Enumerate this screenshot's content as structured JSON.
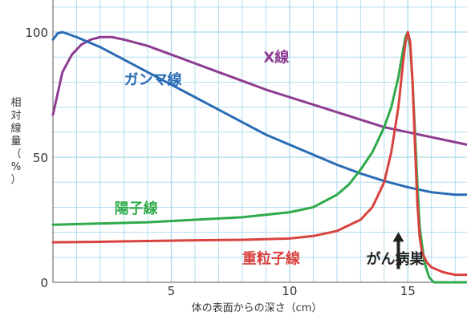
{
  "chart_data": {
    "type": "line",
    "xlabel": "体の表面からの深さ（cm）",
    "ylabel": "相対線量（%）",
    "xlim": [
      0,
      17.5
    ],
    "ylim": [
      0,
      100
    ],
    "x_ticks": [
      5,
      10,
      15
    ],
    "y_ticks": [
      0,
      50,
      100
    ],
    "grid": true,
    "colors": {
      "background": "#ffffff",
      "grid": "#a9d8ec",
      "axis": "#555555",
      "text": "#333333"
    },
    "series": [
      {
        "name": "X線",
        "color": "#8e3c92",
        "x": [
          0,
          0.4,
          0.8,
          1.2,
          1.6,
          2.0,
          2.5,
          3,
          4,
          5,
          6,
          7,
          8,
          9,
          10,
          11,
          12,
          13,
          14,
          15,
          16,
          17,
          17.5
        ],
        "y": [
          67,
          84,
          91,
          95,
          97,
          98,
          98,
          97,
          94.5,
          91,
          87.5,
          84,
          80.5,
          77,
          74,
          71,
          68,
          65,
          62,
          60,
          58,
          56,
          55
        ]
      },
      {
        "name": "ガンマ線",
        "color": "#2a6bb5",
        "x": [
          0,
          0.2,
          0.4,
          0.7,
          1,
          1.5,
          2,
          3,
          4,
          5,
          6,
          7,
          8,
          9,
          10,
          11,
          12,
          13,
          14,
          15,
          16,
          17,
          17.5
        ],
        "y": [
          97,
          99.5,
          100,
          99,
          98,
          96,
          94,
          89,
          84,
          79,
          74,
          69,
          64,
          59,
          55,
          51,
          47,
          43.5,
          40.5,
          38,
          36,
          35,
          35
        ]
      },
      {
        "name": "陽子線",
        "color": "#2faa4a",
        "x": [
          0,
          2,
          4,
          6,
          8,
          10,
          11,
          12,
          12.5,
          13,
          13.5,
          14,
          14.3,
          14.6,
          14.8,
          14.9,
          15.0,
          15.1,
          15.2,
          15.3,
          15.4,
          15.5,
          15.7,
          15.9,
          16.1,
          17.5
        ],
        "y": [
          23,
          23.5,
          24,
          25,
          26,
          28,
          30,
          35,
          39,
          45,
          52,
          62,
          70,
          82,
          93,
          98,
          100,
          94,
          80,
          60,
          40,
          22,
          8,
          2,
          0,
          0
        ]
      },
      {
        "name": "重粒子線",
        "color": "#d9433f",
        "x": [
          0,
          2,
          4,
          6,
          8,
          10,
          11,
          12,
          13,
          13.5,
          14,
          14.3,
          14.6,
          14.8,
          14.9,
          15.0,
          15.1,
          15.2,
          15.3,
          15.4,
          15.5,
          15.6,
          15.8,
          16.0,
          16.5,
          17,
          17.5
        ],
        "y": [
          16,
          16.2,
          16.5,
          16.8,
          17,
          17.5,
          18.5,
          20.5,
          25,
          30,
          40,
          52,
          70,
          88,
          96,
          100,
          96,
          80,
          55,
          32,
          18,
          12,
          8,
          6,
          4,
          3,
          3
        ]
      }
    ],
    "series_labels": [
      "X線",
      "ガンマ線",
      "陽子線",
      "重粒子線"
    ],
    "annotations": [
      {
        "text": "がん病巣",
        "x": 14.6,
        "y": 22
      }
    ]
  }
}
